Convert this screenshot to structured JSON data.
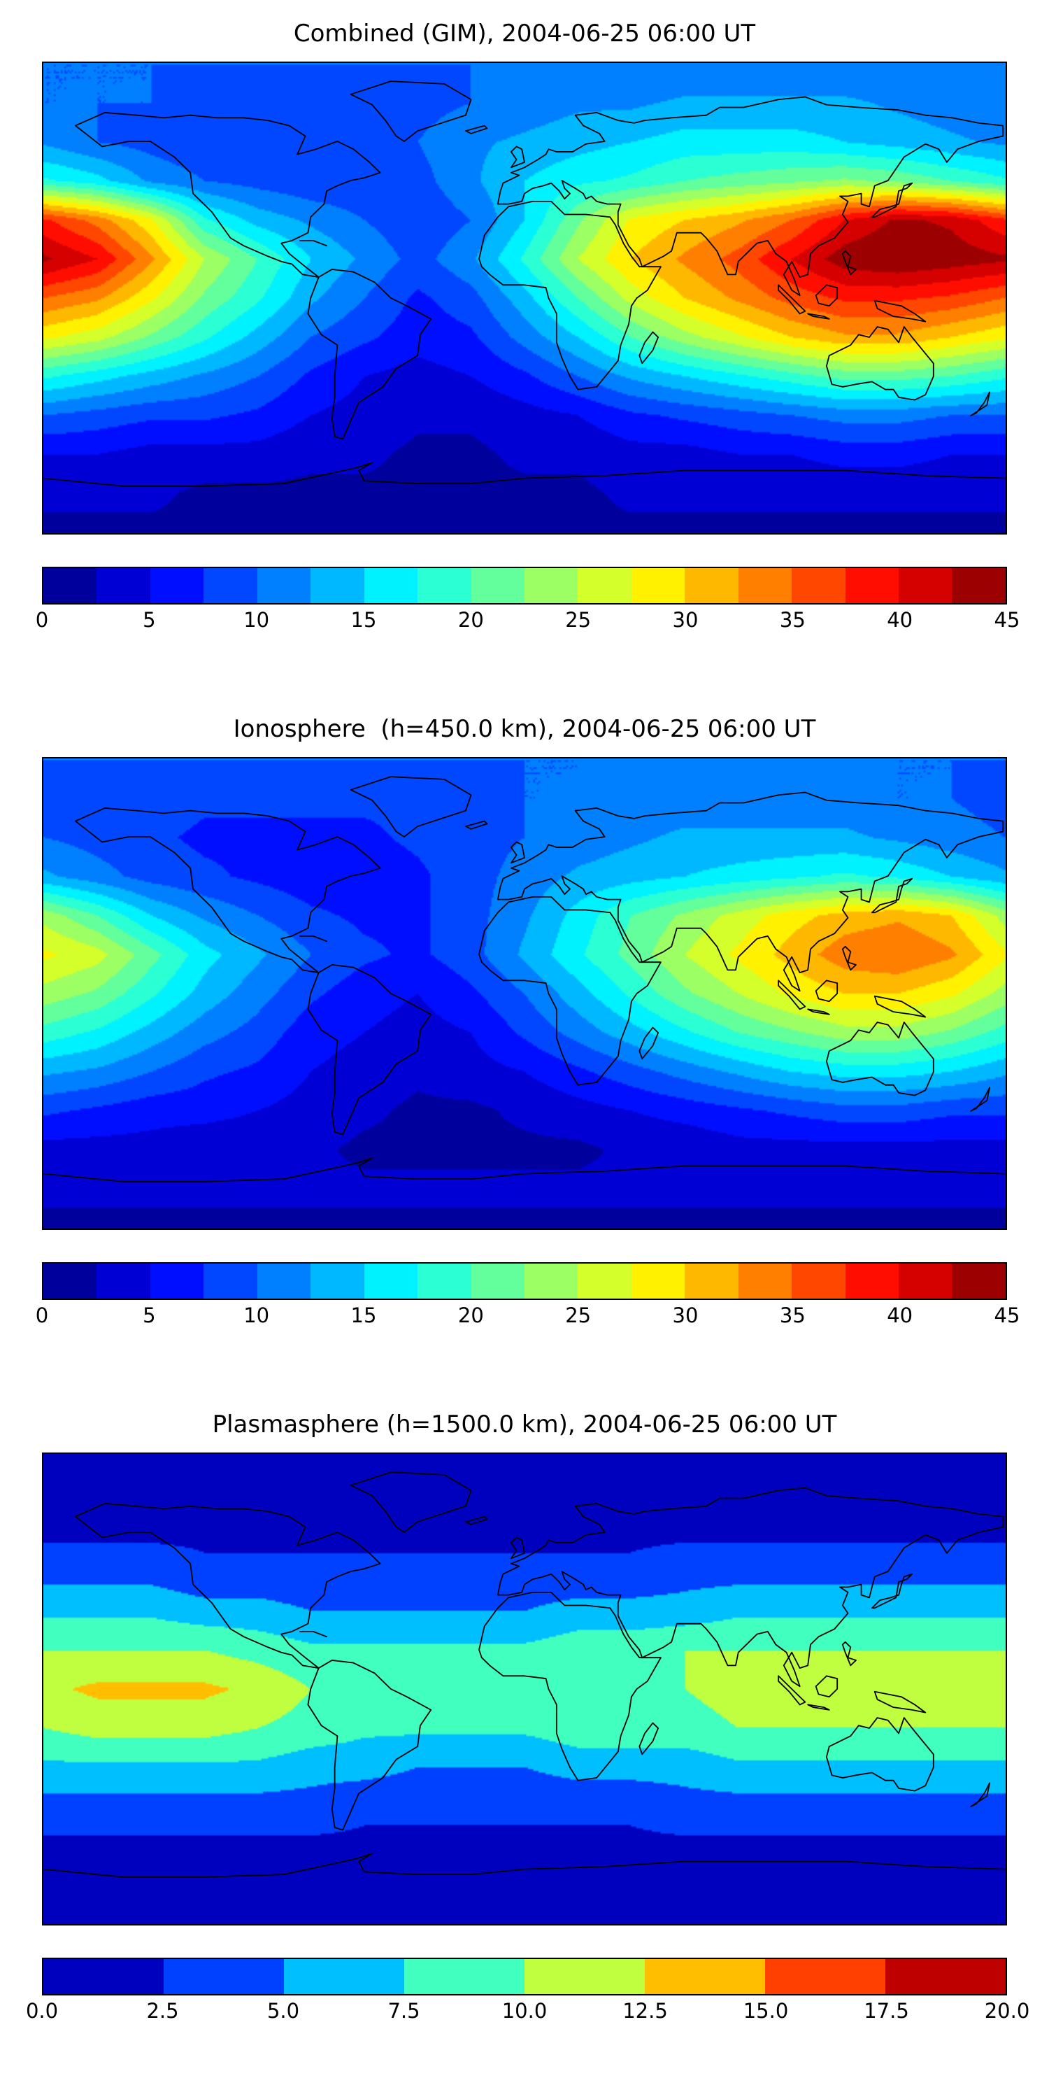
{
  "chart_data": [
    {
      "type": "heatmap",
      "title": "Combined (GIM), 2004-06-25 06:00 UT",
      "colormap": "jet",
      "projection": "equirectangular",
      "lon_range": [
        -180,
        180
      ],
      "lat_range": [
        -90,
        90
      ],
      "vmin": 0,
      "vmax": 45,
      "level_step": 2.5,
      "tick_values": [
        0,
        5,
        10,
        15,
        20,
        25,
        30,
        35,
        40,
        45
      ],
      "tick_labels": [
        "0",
        "5",
        "10",
        "15",
        "20",
        "25",
        "30",
        "35",
        "40",
        "45"
      ],
      "lon": [
        -180,
        -160,
        -140,
        -120,
        -100,
        -80,
        -60,
        -40,
        -20,
        0,
        20,
        40,
        60,
        80,
        100,
        120,
        140,
        160,
        180
      ],
      "lat": [
        90,
        75,
        60,
        45,
        30,
        15,
        0,
        -15,
        -30,
        -45,
        -60,
        -75,
        -90
      ],
      "values": [
        [
          10,
          10,
          10,
          10,
          10,
          10,
          10,
          10,
          10,
          10,
          10,
          10,
          10,
          10,
          10,
          10,
          10,
          10,
          10
        ],
        [
          10,
          10,
          10,
          9,
          9,
          9,
          9,
          9,
          10,
          11,
          12,
          12,
          13,
          13,
          13,
          13,
          12,
          11,
          10
        ],
        [
          12,
          10,
          9,
          8,
          8,
          8,
          9,
          10,
          12,
          13,
          14,
          15,
          16,
          16,
          16,
          15,
          14,
          13,
          12
        ],
        [
          18,
          16,
          12,
          10,
          9,
          8,
          8,
          9,
          12,
          15,
          17,
          18,
          20,
          21,
          22,
          23,
          22,
          20,
          18
        ],
        [
          38,
          34,
          28,
          18,
          14,
          12,
          10,
          8,
          10,
          15,
          22,
          28,
          30,
          32,
          35,
          40,
          43,
          42,
          38
        ],
        [
          43,
          40,
          33,
          25,
          20,
          15,
          12,
          9,
          12,
          18,
          25,
          30,
          33,
          36,
          40,
          44,
          45,
          44,
          43
        ],
        [
          35,
          33,
          28,
          22,
          18,
          13,
          10,
          7,
          9,
          14,
          20,
          26,
          30,
          33,
          36,
          38,
          38,
          37,
          35
        ],
        [
          28,
          26,
          22,
          18,
          14,
          10,
          8,
          6,
          7,
          11,
          15,
          20,
          24,
          27,
          30,
          32,
          32,
          30,
          28
        ],
        [
          18,
          16,
          14,
          12,
          10,
          7,
          5,
          4,
          5,
          7,
          10,
          13,
          15,
          17,
          19,
          21,
          21,
          20,
          18
        ],
        [
          10,
          9,
          8,
          8,
          7,
          5,
          4,
          3,
          3,
          4,
          5,
          7,
          8,
          9,
          10,
          11,
          11,
          10,
          10
        ],
        [
          5,
          5,
          4,
          4,
          4,
          3,
          3,
          2,
          2,
          3,
          3,
          4,
          4,
          5,
          5,
          6,
          6,
          5,
          5
        ],
        [
          3,
          3,
          3,
          2,
          2,
          2,
          2,
          2,
          2,
          2,
          2,
          3,
          3,
          3,
          3,
          3,
          3,
          3,
          3
        ],
        [
          2,
          2,
          2,
          2,
          2,
          2,
          2,
          2,
          2,
          2,
          2,
          2,
          2,
          2,
          2,
          2,
          2,
          2,
          2
        ]
      ]
    },
    {
      "type": "heatmap",
      "title": "Ionosphere  (h=450.0 km), 2004-06-25 06:00 UT",
      "colormap": "jet",
      "projection": "equirectangular",
      "lon_range": [
        -180,
        180
      ],
      "lat_range": [
        -90,
        90
      ],
      "vmin": 0,
      "vmax": 45,
      "level_step": 2.5,
      "tick_values": [
        0,
        5,
        10,
        15,
        20,
        25,
        30,
        35,
        40,
        45
      ],
      "tick_labels": [
        "0",
        "5",
        "10",
        "15",
        "20",
        "25",
        "30",
        "35",
        "40",
        "45"
      ],
      "lon": [
        -180,
        -160,
        -140,
        -120,
        -100,
        -80,
        -60,
        -40,
        -20,
        0,
        20,
        40,
        60,
        80,
        100,
        120,
        140,
        160,
        180
      ],
      "lat": [
        90,
        75,
        60,
        45,
        30,
        15,
        0,
        -15,
        -30,
        -45,
        -60,
        -75,
        -90
      ],
      "values": [
        [
          10,
          10,
          10,
          10,
          10,
          10,
          10,
          10,
          10,
          10,
          10,
          10,
          10,
          10,
          10,
          10,
          10,
          10,
          10
        ],
        [
          9,
          9,
          9,
          8,
          8,
          8,
          8,
          8,
          9,
          10,
          10,
          11,
          11,
          11,
          11,
          11,
          10,
          10,
          9
        ],
        [
          10,
          9,
          8,
          7,
          7,
          7,
          7,
          8,
          9,
          10,
          11,
          12,
          13,
          13,
          13,
          13,
          12,
          11,
          10
        ],
        [
          13,
          11,
          9,
          8,
          7,
          6,
          6,
          7,
          9,
          11,
          13,
          14,
          15,
          16,
          17,
          18,
          17,
          15,
          13
        ],
        [
          24,
          20,
          15,
          12,
          10,
          8,
          7,
          7,
          9,
          12,
          16,
          20,
          23,
          26,
          29,
          31,
          32,
          30,
          24
        ],
        [
          28,
          26,
          21,
          16,
          13,
          10,
          8,
          7,
          9,
          13,
          17,
          21,
          25,
          28,
          31,
          34,
          35,
          33,
          28
        ],
        [
          24,
          22,
          18,
          14,
          11,
          8,
          6,
          5,
          7,
          10,
          14,
          18,
          22,
          25,
          28,
          30,
          30,
          28,
          24
        ],
        [
          19,
          17,
          14,
          11,
          9,
          6,
          5,
          4,
          5,
          8,
          11,
          14,
          17,
          20,
          22,
          24,
          24,
          22,
          19
        ],
        [
          13,
          12,
          10,
          8,
          7,
          5,
          4,
          3,
          4,
          5,
          7,
          9,
          11,
          13,
          15,
          16,
          16,
          15,
          13
        ],
        [
          8,
          7,
          6,
          6,
          5,
          4,
          3,
          2,
          2,
          3,
          4,
          5,
          6,
          7,
          8,
          9,
          9,
          8,
          8
        ],
        [
          4,
          4,
          4,
          3,
          3,
          3,
          2,
          2,
          2,
          2,
          2,
          3,
          3,
          4,
          4,
          4,
          4,
          4,
          4
        ],
        [
          3,
          3,
          3,
          3,
          3,
          3,
          3,
          3,
          3,
          3,
          3,
          3,
          3,
          3,
          3,
          3,
          3,
          3,
          3
        ],
        [
          2,
          2,
          2,
          2,
          2,
          2,
          2,
          2,
          2,
          2,
          2,
          2,
          2,
          2,
          2,
          2,
          2,
          2,
          2
        ]
      ]
    },
    {
      "type": "heatmap",
      "title": "Plasmasphere (h=1500.0 km), 2004-06-25 06:00 UT",
      "colormap": "jet",
      "projection": "equirectangular",
      "lon_range": [
        -180,
        180
      ],
      "lat_range": [
        -90,
        90
      ],
      "vmin": 0,
      "vmax": 20,
      "level_step": 2.5,
      "tick_values": [
        0.0,
        2.5,
        5.0,
        7.5,
        10.0,
        12.5,
        15.0,
        17.5,
        20.0
      ],
      "tick_labels": [
        "0.0",
        "2.5",
        "5.0",
        "7.5",
        "10.0",
        "12.5",
        "15.0",
        "17.5",
        "20.0"
      ],
      "lon": [
        -180,
        -160,
        -140,
        -120,
        -100,
        -80,
        -60,
        -40,
        -20,
        0,
        20,
        40,
        60,
        80,
        100,
        120,
        140,
        160,
        180
      ],
      "lat": [
        90,
        75,
        60,
        45,
        30,
        15,
        0,
        -15,
        -30,
        -45,
        -60,
        -75,
        -90
      ],
      "values": [
        [
          1.5,
          1.5,
          1.5,
          1.5,
          1.5,
          1.5,
          1.5,
          1.5,
          1.5,
          1.5,
          1.5,
          1.5,
          1.5,
          1.5,
          1.5,
          1.5,
          1.5,
          1.5,
          1.5
        ],
        [
          1.5,
          1.5,
          1.5,
          1.5,
          1.5,
          1.5,
          1.5,
          1.5,
          1.5,
          1.5,
          1.5,
          1.5,
          1.5,
          1.5,
          1.5,
          1.5,
          1.5,
          1.5,
          1.5
        ],
        [
          2,
          2,
          2,
          2,
          2,
          2,
          2,
          2,
          2,
          2,
          2,
          2,
          2,
          2,
          2,
          2,
          2,
          2,
          2
        ],
        [
          4,
          4,
          4,
          3,
          3,
          3,
          3,
          3,
          3,
          3,
          3,
          3,
          4,
          4,
          4,
          4,
          4,
          4,
          4
        ],
        [
          7,
          7,
          7,
          6,
          6,
          5,
          5,
          5,
          5,
          5,
          6,
          6,
          6,
          7,
          7,
          7,
          7,
          7,
          7
        ],
        [
          10,
          10,
          10,
          10,
          9,
          8,
          8,
          8,
          8,
          8,
          9,
          9,
          10,
          10,
          10,
          10,
          10,
          10,
          10
        ],
        [
          12,
          13,
          13,
          13,
          12,
          10,
          9,
          9,
          9,
          9,
          10,
          10,
          10,
          11,
          11,
          11,
          11,
          11,
          12
        ],
        [
          10,
          11,
          11,
          11,
          10,
          9,
          8,
          8,
          8,
          8,
          9,
          9,
          9,
          10,
          10,
          10,
          10,
          10,
          10
        ],
        [
          7,
          7,
          7,
          7,
          7,
          6,
          6,
          5,
          5,
          5,
          6,
          6,
          6,
          7,
          7,
          7,
          7,
          7,
          7
        ],
        [
          4,
          4,
          4,
          4,
          4,
          4,
          3,
          3,
          3,
          3,
          3,
          3,
          4,
          4,
          4,
          4,
          4,
          4,
          4
        ],
        [
          2,
          2,
          2,
          2,
          2,
          2,
          2,
          2,
          2,
          2,
          2,
          2,
          2,
          2,
          2,
          2,
          2,
          2,
          2
        ],
        [
          1.5,
          1.5,
          1.5,
          1.5,
          1.5,
          1.5,
          1.5,
          1.5,
          1.5,
          1.5,
          1.5,
          1.5,
          1.5,
          1.5,
          1.5,
          1.5,
          1.5,
          1.5,
          1.5
        ],
        [
          1.5,
          1.5,
          1.5,
          1.5,
          1.5,
          1.5,
          1.5,
          1.5,
          1.5,
          1.5,
          1.5,
          1.5,
          1.5,
          1.5,
          1.5,
          1.5,
          1.5,
          1.5,
          1.5
        ]
      ]
    }
  ],
  "style": {
    "coastline_color": "#000000",
    "frame_color": "#000000",
    "background": "#ffffff"
  }
}
